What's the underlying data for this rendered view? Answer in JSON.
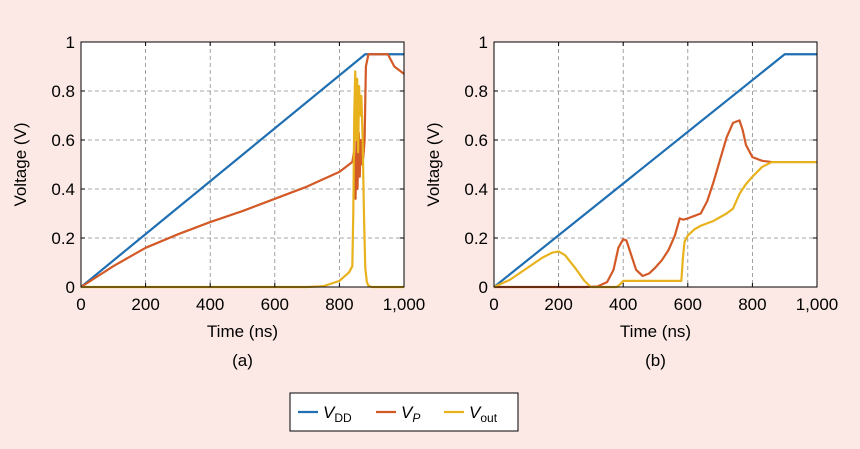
{
  "chart_data": [
    {
      "type": "line",
      "caption": "(a)",
      "xlabel": "Time (ns)",
      "ylabel": "Voltage (V)",
      "xlim": [
        0,
        1000
      ],
      "ylim": [
        0,
        1
      ],
      "xticks": [
        0,
        200,
        400,
        600,
        800,
        1000
      ],
      "xtick_labels": [
        "0",
        "200",
        "400",
        "600",
        "800",
        "1,000"
      ],
      "yticks": [
        0,
        0.2,
        0.4,
        0.6,
        0.8,
        1
      ],
      "ytick_labels": [
        "0",
        "0.2",
        "0.4",
        "0.6",
        "0.8",
        "1"
      ],
      "grid": true,
      "series": [
        {
          "key": "vdd",
          "color": "#1f6fb2",
          "x": [
            0,
            880,
            1000
          ],
          "y": [
            0,
            0.95,
            0.95
          ]
        },
        {
          "key": "vp",
          "color": "#d35a27",
          "x": [
            0,
            100,
            200,
            300,
            400,
            500,
            600,
            700,
            800,
            840,
            845,
            850,
            853,
            856,
            860,
            863,
            866,
            870,
            874,
            878,
            882,
            890,
            920,
            950,
            970,
            1000
          ],
          "y": [
            0,
            0.085,
            0.16,
            0.215,
            0.265,
            0.31,
            0.36,
            0.41,
            0.47,
            0.51,
            0.55,
            0.36,
            0.6,
            0.4,
            0.63,
            0.45,
            0.6,
            0.5,
            0.53,
            0.6,
            0.9,
            0.95,
            0.95,
            0.95,
            0.9,
            0.87
          ]
        },
        {
          "key": "vout",
          "color": "#e8b21c",
          "x": [
            0,
            600,
            700,
            750,
            800,
            830,
            840,
            843,
            846,
            849,
            852,
            855,
            858,
            861,
            864,
            868,
            872,
            876,
            880,
            885,
            890,
            900,
            920,
            1000
          ],
          "y": [
            0,
            0,
            0,
            0.003,
            0.025,
            0.06,
            0.085,
            0.3,
            0.7,
            0.88,
            0.6,
            0.85,
            0.55,
            0.82,
            0.7,
            0.78,
            0.6,
            0.3,
            0.08,
            0.02,
            0.005,
            0,
            0,
            0
          ]
        }
      ]
    },
    {
      "type": "line",
      "caption": "(b)",
      "xlabel": "Time (ns)",
      "ylabel": "Voltage (V)",
      "xlim": [
        0,
        1000
      ],
      "ylim": [
        0,
        1
      ],
      "xticks": [
        0,
        200,
        400,
        600,
        800,
        1000
      ],
      "xtick_labels": [
        "0",
        "200",
        "400",
        "600",
        "800",
        "1,000"
      ],
      "yticks": [
        0,
        0.2,
        0.4,
        0.6,
        0.8,
        1
      ],
      "ytick_labels": [
        "0",
        "0.2",
        "0.4",
        "0.6",
        "0.8",
        "1"
      ],
      "grid": true,
      "series": [
        {
          "key": "vdd",
          "color": "#1f6fb2",
          "x": [
            0,
            900,
            1000
          ],
          "y": [
            0,
            0.95,
            0.95
          ]
        },
        {
          "key": "vp",
          "color": "#d35a27",
          "x": [
            0,
            280,
            320,
            350,
            370,
            385,
            400,
            410,
            420,
            440,
            460,
            480,
            500,
            520,
            540,
            560,
            575,
            585,
            600,
            620,
            640,
            660,
            680,
            700,
            720,
            740,
            760,
            770,
            780,
            800,
            830,
            860,
            900,
            1000
          ],
          "y": [
            0,
            0,
            0.002,
            0.02,
            0.07,
            0.16,
            0.195,
            0.19,
            0.15,
            0.07,
            0.045,
            0.055,
            0.08,
            0.11,
            0.15,
            0.21,
            0.28,
            0.275,
            0.28,
            0.29,
            0.3,
            0.35,
            0.43,
            0.52,
            0.61,
            0.67,
            0.68,
            0.64,
            0.58,
            0.53,
            0.515,
            0.51,
            0.51,
            0.51
          ]
        },
        {
          "key": "vout",
          "color": "#e8b21c",
          "x": [
            0,
            50,
            100,
            150,
            180,
            200,
            220,
            250,
            280,
            300,
            380,
            390,
            400,
            420,
            580,
            585,
            590,
            600,
            620,
            640,
            680,
            720,
            740,
            760,
            780,
            800,
            830,
            860,
            900,
            1000
          ],
          "y": [
            0,
            0.03,
            0.075,
            0.12,
            0.14,
            0.145,
            0.13,
            0.08,
            0.025,
            0,
            0,
            0.01,
            0.025,
            0.025,
            0.025,
            0.12,
            0.185,
            0.21,
            0.235,
            0.25,
            0.27,
            0.3,
            0.32,
            0.38,
            0.42,
            0.45,
            0.49,
            0.51,
            0.51,
            0.51
          ]
        }
      ]
    }
  ],
  "legend": {
    "items": [
      {
        "key": "vdd",
        "main": "V",
        "sub": "DD",
        "color": "#1f6fb2"
      },
      {
        "key": "vp",
        "main": "V",
        "sub": "P",
        "color": "#d35a27"
      },
      {
        "key": "vout",
        "main": "V",
        "sub": "out",
        "color": "#e8b21c"
      }
    ]
  }
}
